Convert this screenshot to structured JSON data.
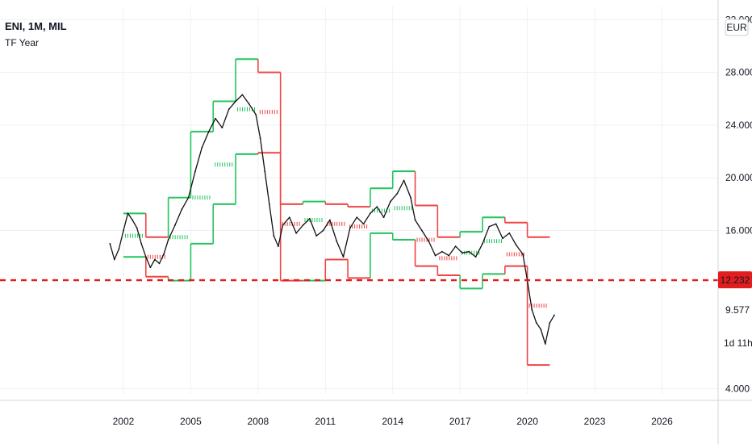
{
  "colors": {
    "background": "#ffffff",
    "grid": "#eef0f3",
    "price": "#111111",
    "support_line": "#22c55e",
    "resistance_line": "#ef4444",
    "ref_line": "#e11d1d",
    "badge_bg": "#e11d1d",
    "badge_text": "#ffffff",
    "axis_text": "#131722"
  },
  "chart_data": {
    "type": "line",
    "title": "ENI, 1M, MIL",
    "subtitle": "TF Year",
    "currency": "EUR",
    "xlabel": "",
    "ylabel": "",
    "xlim": [
      1996.5,
      2028.5
    ],
    "ylim": [
      3.6,
      33.0
    ],
    "grid": true,
    "x_ticks": [
      "2002",
      "2005",
      "2008",
      "2011",
      "2014",
      "2017",
      "2020",
      "2023",
      "2026"
    ],
    "x_tick_values": [
      2002,
      2005,
      2008,
      2011,
      2014,
      2017,
      2020,
      2023,
      2026
    ],
    "y_ticks": [
      "32.000",
      "28.000",
      "24.000",
      "20.000",
      "16.000",
      "4.000"
    ],
    "y_tick_values": [
      32,
      28,
      24,
      20,
      16,
      4
    ],
    "current_price_label": "12.232",
    "current_price": 12.232,
    "last_price_label": "9.577",
    "countdown_label": "1d 11h",
    "series": [
      {
        "kind": "price",
        "x": [
          2001.4,
          2001.6,
          2001.8,
          2002.0,
          2002.2,
          2002.4,
          2002.6,
          2002.8,
          2003.0,
          2003.2,
          2003.4,
          2003.6,
          2003.8,
          2004.0,
          2004.3,
          2004.6,
          2004.9,
          2005.2,
          2005.5,
          2005.8,
          2006.1,
          2006.4,
          2006.7,
          2007.0,
          2007.3,
          2007.6,
          2007.9,
          2008.1,
          2008.3,
          2008.5,
          2008.7,
          2008.9,
          2009.1,
          2009.4,
          2009.7,
          2010.0,
          2010.3,
          2010.6,
          2010.9,
          2011.2,
          2011.5,
          2011.8,
          2012.1,
          2012.4,
          2012.7,
          2013.0,
          2013.3,
          2013.6,
          2013.9,
          2014.2,
          2014.5,
          2014.8,
          2015.0,
          2015.3,
          2015.6,
          2015.9,
          2016.2,
          2016.5,
          2016.8,
          2017.1,
          2017.4,
          2017.7,
          2018.0,
          2018.3,
          2018.6,
          2018.9,
          2019.2,
          2019.5,
          2019.8,
          2020.0,
          2020.2,
          2020.4,
          2020.6,
          2020.8,
          2021.0,
          2021.2
        ],
        "y": [
          15.0,
          13.8,
          14.6,
          16.0,
          17.3,
          16.8,
          16.2,
          15.0,
          14.0,
          13.2,
          13.8,
          13.5,
          14.2,
          15.3,
          16.4,
          17.6,
          18.5,
          20.5,
          22.3,
          23.5,
          24.5,
          23.8,
          25.2,
          25.8,
          26.3,
          25.6,
          24.8,
          23.0,
          20.5,
          18.0,
          15.6,
          14.8,
          16.4,
          17.0,
          15.8,
          16.4,
          16.9,
          15.6,
          16.0,
          16.8,
          15.2,
          14.0,
          16.2,
          17.0,
          16.5,
          17.3,
          17.8,
          17.0,
          18.2,
          18.8,
          19.8,
          18.5,
          16.8,
          16.0,
          15.2,
          14.1,
          14.4,
          14.1,
          14.8,
          14.3,
          14.4,
          14.0,
          15.0,
          16.3,
          16.5,
          15.4,
          15.8,
          14.9,
          14.2,
          12.2,
          10.0,
          9.0,
          8.5,
          7.4,
          9.0,
          9.58
        ]
      },
      {
        "kind": "year_high",
        "x": [
          2002,
          2003,
          2004,
          2005,
          2006,
          2007,
          2008,
          2009,
          2010,
          2011,
          2012,
          2013,
          2014,
          2015,
          2016,
          2017,
          2018,
          2019,
          2020
        ],
        "y": [
          17.3,
          15.5,
          18.5,
          23.5,
          25.8,
          29.0,
          28.0,
          18.0,
          18.2,
          18.0,
          17.8,
          19.2,
          20.5,
          17.9,
          15.5,
          15.9,
          17.0,
          16.6,
          15.5
        ]
      },
      {
        "kind": "year_mid",
        "x": [
          2002,
          2003,
          2004,
          2005,
          2006,
          2007,
          2008,
          2009,
          2010,
          2011,
          2012,
          2013,
          2014,
          2015,
          2016,
          2017,
          2018,
          2019,
          2020
        ],
        "y": [
          15.6,
          14.0,
          15.5,
          18.5,
          21.0,
          25.2,
          25.0,
          16.5,
          16.8,
          16.5,
          16.3,
          17.5,
          17.7,
          15.3,
          13.9,
          14.3,
          15.2,
          14.2,
          10.3
        ]
      },
      {
        "kind": "year_low",
        "x": [
          2002,
          2003,
          2004,
          2005,
          2006,
          2007,
          2008,
          2009,
          2010,
          2011,
          2012,
          2013,
          2014,
          2015,
          2016,
          2017,
          2018,
          2019,
          2020
        ],
        "y": [
          14.0,
          12.5,
          12.2,
          15.0,
          18.0,
          21.8,
          21.9,
          12.2,
          12.2,
          13.8,
          12.4,
          15.8,
          15.3,
          13.3,
          12.6,
          11.6,
          12.7,
          13.3,
          5.8
        ]
      }
    ]
  }
}
